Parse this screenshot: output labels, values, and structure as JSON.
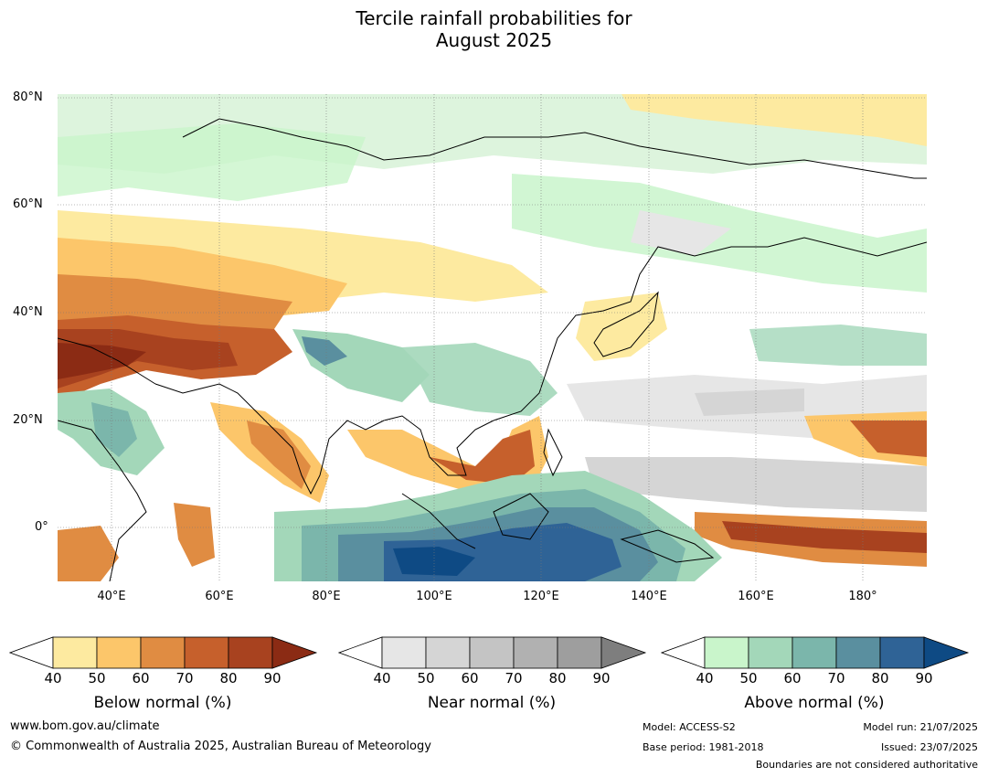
{
  "title_line1": "Tercile rainfall probabilities for",
  "title_line2": "August 2025",
  "lat_labels": [
    "80°N",
    "60°N",
    "40°N",
    "20°N",
    "0°"
  ],
  "lon_labels": [
    "40°E",
    "60°E",
    "80°E",
    "100°E",
    "120°E",
    "140°E",
    "160°E",
    "180°"
  ],
  "colorbars": [
    {
      "title": "Below normal (%)",
      "ticks": [
        "40",
        "50",
        "60",
        "70",
        "80",
        "90"
      ],
      "colors": [
        "#ffffff",
        "#fdeaa0",
        "#fcc66a",
        "#e08c42",
        "#c6602c",
        "#a8421f",
        "#8b2b14"
      ]
    },
    {
      "title": "Near normal (%)",
      "ticks": [
        "40",
        "50",
        "60",
        "70",
        "80",
        "90"
      ],
      "colors": [
        "#ffffff",
        "#e6e6e6",
        "#d5d5d5",
        "#c4c4c4",
        "#b1b1b1",
        "#9e9e9e",
        "#7e7e7e"
      ]
    },
    {
      "title": "Above normal (%)",
      "ticks": [
        "40",
        "50",
        "60",
        "70",
        "80",
        "90"
      ],
      "colors": [
        "#ffffff",
        "#c9f5cb",
        "#a3d7b9",
        "#7bb6ab",
        "#5a8f9f",
        "#2f6396",
        "#0e4a84"
      ]
    }
  ],
  "footer": {
    "website": "www.bom.gov.au/climate",
    "copyright": "© Commonwealth of Australia 2025, Australian Bureau of Meteorology",
    "model": "Model: ACCESS-S2",
    "base_period": "Base period: 1981-2018",
    "model_run": "Model run: 21/07/2025",
    "issued": "Issued: 23/07/2025",
    "disclaimer": "Boundaries are not considered authoritative"
  }
}
